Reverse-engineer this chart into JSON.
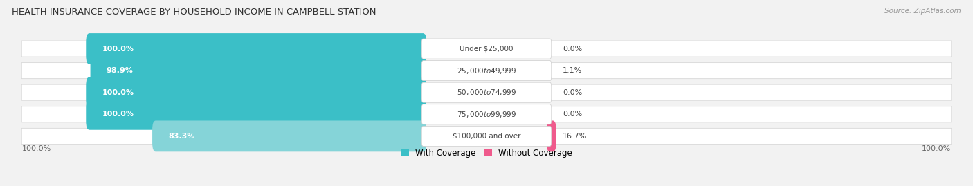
{
  "title": "HEALTH INSURANCE COVERAGE BY HOUSEHOLD INCOME IN CAMPBELL STATION",
  "source": "Source: ZipAtlas.com",
  "categories": [
    "Under $25,000",
    "$25,000 to $49,999",
    "$50,000 to $74,999",
    "$75,000 to $99,999",
    "$100,000 and over"
  ],
  "with_coverage": [
    100.0,
    98.9,
    100.0,
    100.0,
    83.3
  ],
  "without_coverage": [
    0.0,
    1.1,
    0.0,
    0.0,
    16.7
  ],
  "color_with": "#3BBFC7",
  "color_with_light": "#85D4D8",
  "color_without_light": "#F4AABF",
  "color_without_strong": "#EF5A8C",
  "bg_color": "#f2f2f2",
  "title_fontsize": 9.5,
  "label_fontsize": 8.0,
  "tick_fontsize": 8.0,
  "legend_fontsize": 8.5,
  "source_fontsize": 7.5
}
